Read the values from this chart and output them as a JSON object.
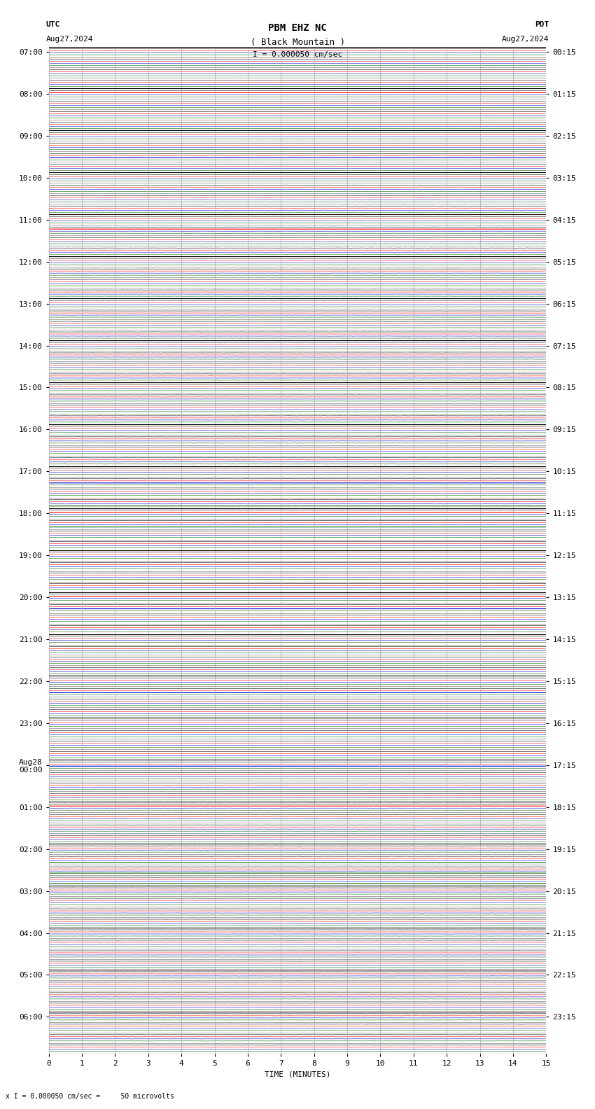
{
  "title_line1": "PBM EHZ NC",
  "title_line2": "( Black Mountain )",
  "scale_label": "I = 0.000050 cm/sec",
  "footer_label": "x I = 0.000050 cm/sec =     50 microvolts",
  "utc_label": "UTC",
  "utc_date": "Aug27,2024",
  "pdt_label": "PDT",
  "pdt_date": "Aug27,2024",
  "xlabel": "TIME (MINUTES)",
  "left_times": [
    "07:00",
    "",
    "",
    "",
    "08:00",
    "",
    "",
    "",
    "09:00",
    "",
    "",
    "",
    "10:00",
    "",
    "",
    "",
    "11:00",
    "",
    "",
    "",
    "12:00",
    "",
    "",
    "",
    "13:00",
    "",
    "",
    "",
    "14:00",
    "",
    "",
    "",
    "15:00",
    "",
    "",
    "",
    "16:00",
    "",
    "",
    "",
    "17:00",
    "",
    "",
    "",
    "18:00",
    "",
    "",
    "",
    "19:00",
    "",
    "",
    "",
    "20:00",
    "",
    "",
    "",
    "21:00",
    "",
    "",
    "",
    "22:00",
    "",
    "",
    "",
    "23:00",
    "",
    "",
    "",
    "Aug28\n00:00",
    "",
    "",
    "",
    "01:00",
    "",
    "",
    "",
    "02:00",
    "",
    "",
    "",
    "03:00",
    "",
    "",
    "",
    "04:00",
    "",
    "",
    "",
    "05:00",
    "",
    "",
    "",
    "06:00",
    "",
    "",
    ""
  ],
  "right_times": [
    "00:15",
    "",
    "",
    "",
    "01:15",
    "",
    "",
    "",
    "02:15",
    "",
    "",
    "",
    "03:15",
    "",
    "",
    "",
    "04:15",
    "",
    "",
    "",
    "05:15",
    "",
    "",
    "",
    "06:15",
    "",
    "",
    "",
    "07:15",
    "",
    "",
    "",
    "08:15",
    "",
    "",
    "",
    "09:15",
    "",
    "",
    "",
    "10:15",
    "",
    "",
    "",
    "11:15",
    "",
    "",
    "",
    "12:15",
    "",
    "",
    "",
    "13:15",
    "",
    "",
    "",
    "14:15",
    "",
    "",
    "",
    "15:15",
    "",
    "",
    "",
    "16:15",
    "",
    "",
    "",
    "17:15",
    "",
    "",
    "",
    "18:15",
    "",
    "",
    "",
    "19:15",
    "",
    "",
    "",
    "20:15",
    "",
    "",
    "",
    "21:15",
    "",
    "",
    "",
    "22:15",
    "",
    "",
    "",
    "23:15",
    "",
    "",
    ""
  ],
  "n_rows": 96,
  "n_traces_per_row": 4,
  "trace_colors": [
    "#000000",
    "#ff0000",
    "#0000cc",
    "#006600"
  ],
  "xmin": 0,
  "xmax": 15,
  "xticks": [
    0,
    1,
    2,
    3,
    4,
    5,
    6,
    7,
    8,
    9,
    10,
    11,
    12,
    13,
    14,
    15
  ],
  "grid_color": "#aaaaaa",
  "bg_color": "#ffffff",
  "noise_scale": 0.006,
  "font_size_title": 10,
  "font_size_tick": 8,
  "font_size_label": 8,
  "prominent_red_rows": [
    4,
    17,
    44,
    52,
    72
  ],
  "prominent_blue_rows": [
    10,
    41,
    53,
    61,
    68
  ],
  "prominent_green_rows": [
    43,
    45,
    77,
    78,
    79
  ]
}
